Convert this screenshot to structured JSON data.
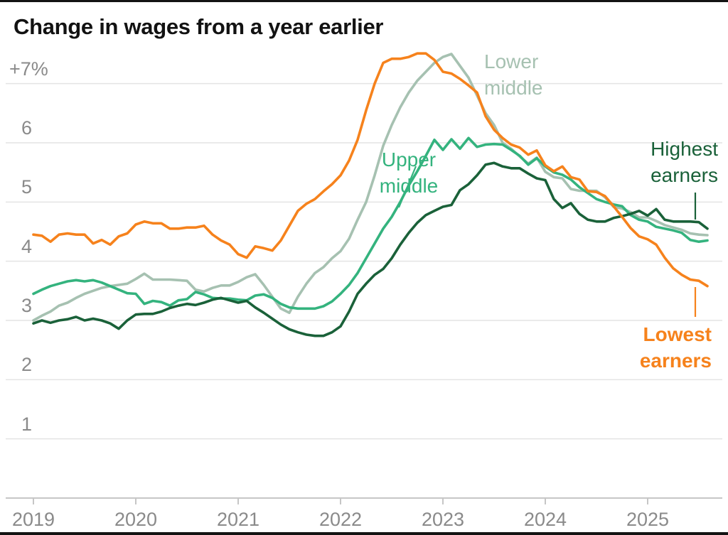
{
  "title": "Change in wages from a year earlier",
  "y_axis": {
    "labels": [
      {
        "value": 7,
        "text": "+7%"
      },
      {
        "value": 6,
        "text": "6"
      },
      {
        "value": 5,
        "text": "5"
      },
      {
        "value": 4,
        "text": "4"
      },
      {
        "value": 3,
        "text": "3"
      },
      {
        "value": 2,
        "text": "2"
      },
      {
        "value": 1,
        "text": "1"
      }
    ]
  },
  "x_axis": {
    "labels": [
      "2019",
      "2020",
      "2021",
      "2022",
      "2023",
      "2024",
      "2025"
    ]
  },
  "chart_data": {
    "type": "line",
    "title": "Change in wages from a year earlier",
    "unit": "percent",
    "frequency": "monthly",
    "x_start": "2019-01",
    "x_end": "2025-08",
    "x_tick_labels": [
      "2019",
      "2020",
      "2021",
      "2022",
      "2023",
      "2024",
      "2025"
    ],
    "y_ticks": [
      1,
      2,
      3,
      4,
      5,
      6,
      7
    ],
    "ylim": [
      0,
      7.6
    ],
    "grid": "horizontal",
    "legend_position": "inline-labels",
    "series": [
      {
        "name": "lower-middle",
        "label": "Lower\nmiddle",
        "color": "#a6c1b1",
        "values": [
          3.0,
          3.08,
          3.15,
          3.25,
          3.3,
          3.38,
          3.45,
          3.5,
          3.55,
          3.58,
          3.6,
          3.62,
          3.7,
          3.79,
          3.69,
          3.69,
          3.69,
          3.68,
          3.67,
          3.52,
          3.49,
          3.55,
          3.59,
          3.59,
          3.65,
          3.73,
          3.78,
          3.6,
          3.4,
          3.2,
          3.13,
          3.4,
          3.62,
          3.8,
          3.9,
          4.05,
          4.17,
          4.38,
          4.7,
          5.0,
          5.45,
          5.95,
          6.3,
          6.6,
          6.85,
          7.05,
          7.2,
          7.35,
          7.45,
          7.5,
          7.3,
          7.1,
          6.8,
          6.5,
          6.3,
          6.0,
          5.9,
          5.77,
          5.65,
          5.75,
          5.51,
          5.42,
          5.4,
          5.22,
          5.19,
          5.19,
          5.19,
          5.08,
          4.92,
          4.89,
          4.83,
          4.74,
          4.74,
          4.68,
          4.61,
          4.57,
          4.53,
          4.47,
          4.45,
          4.44
        ]
      },
      {
        "name": "upper-middle",
        "label": "Upper\nmiddle",
        "color": "#34b37e",
        "values": [
          3.45,
          3.52,
          3.58,
          3.62,
          3.66,
          3.68,
          3.66,
          3.68,
          3.64,
          3.58,
          3.52,
          3.46,
          3.45,
          3.28,
          3.33,
          3.31,
          3.25,
          3.34,
          3.36,
          3.48,
          3.44,
          3.38,
          3.37,
          3.37,
          3.35,
          3.34,
          3.42,
          3.44,
          3.38,
          3.28,
          3.22,
          3.2,
          3.2,
          3.2,
          3.24,
          3.32,
          3.45,
          3.6,
          3.8,
          4.05,
          4.3,
          4.55,
          4.75,
          5.0,
          5.28,
          5.52,
          5.78,
          6.05,
          5.88,
          6.06,
          5.9,
          6.08,
          5.93,
          5.97,
          5.98,
          5.97,
          5.88,
          5.78,
          5.63,
          5.74,
          5.6,
          5.5,
          5.46,
          5.38,
          5.25,
          5.15,
          5.05,
          5.0,
          4.96,
          4.93,
          4.78,
          4.7,
          4.67,
          4.58,
          4.55,
          4.52,
          4.48,
          4.36,
          4.33,
          4.35
        ]
      },
      {
        "name": "highest-earners",
        "label": "Highest\nearners",
        "color": "#1a6139",
        "values": [
          2.95,
          3.0,
          2.96,
          3.0,
          3.02,
          3.06,
          3.0,
          3.03,
          3.0,
          2.95,
          2.86,
          3.0,
          3.1,
          3.11,
          3.11,
          3.15,
          3.21,
          3.25,
          3.28,
          3.26,
          3.3,
          3.35,
          3.38,
          3.34,
          3.3,
          3.33,
          3.22,
          3.13,
          3.03,
          2.93,
          2.85,
          2.8,
          2.76,
          2.74,
          2.74,
          2.8,
          2.9,
          3.15,
          3.45,
          3.62,
          3.77,
          3.87,
          4.05,
          4.28,
          4.48,
          4.65,
          4.78,
          4.85,
          4.92,
          4.95,
          5.2,
          5.3,
          5.45,
          5.63,
          5.66,
          5.6,
          5.57,
          5.57,
          5.48,
          5.4,
          5.37,
          5.05,
          4.9,
          4.98,
          4.8,
          4.7,
          4.67,
          4.67,
          4.73,
          4.76,
          4.8,
          4.85,
          4.77,
          4.88,
          4.7,
          4.67,
          4.67,
          4.67,
          4.66,
          4.55
        ]
      },
      {
        "name": "lowest-earners",
        "label": "Lowest\nearners",
        "color": "#f6821c",
        "values": [
          4.45,
          4.43,
          4.33,
          4.45,
          4.47,
          4.45,
          4.45,
          4.3,
          4.36,
          4.28,
          4.42,
          4.47,
          4.62,
          4.67,
          4.64,
          4.64,
          4.55,
          4.55,
          4.57,
          4.57,
          4.6,
          4.45,
          4.35,
          4.28,
          4.12,
          4.06,
          4.25,
          4.22,
          4.18,
          4.35,
          4.6,
          4.85,
          4.97,
          5.05,
          5.18,
          5.3,
          5.45,
          5.7,
          6.05,
          6.55,
          7.0,
          7.35,
          7.42,
          7.42,
          7.45,
          7.51,
          7.51,
          7.4,
          7.2,
          7.17,
          7.08,
          6.97,
          6.85,
          6.45,
          6.22,
          6.08,
          5.97,
          5.92,
          5.8,
          5.87,
          5.62,
          5.52,
          5.6,
          5.42,
          5.38,
          5.18,
          5.17,
          5.1,
          4.93,
          4.75,
          4.56,
          4.42,
          4.37,
          4.28,
          4.06,
          3.88,
          3.77,
          3.69,
          3.67,
          3.58
        ]
      }
    ]
  }
}
